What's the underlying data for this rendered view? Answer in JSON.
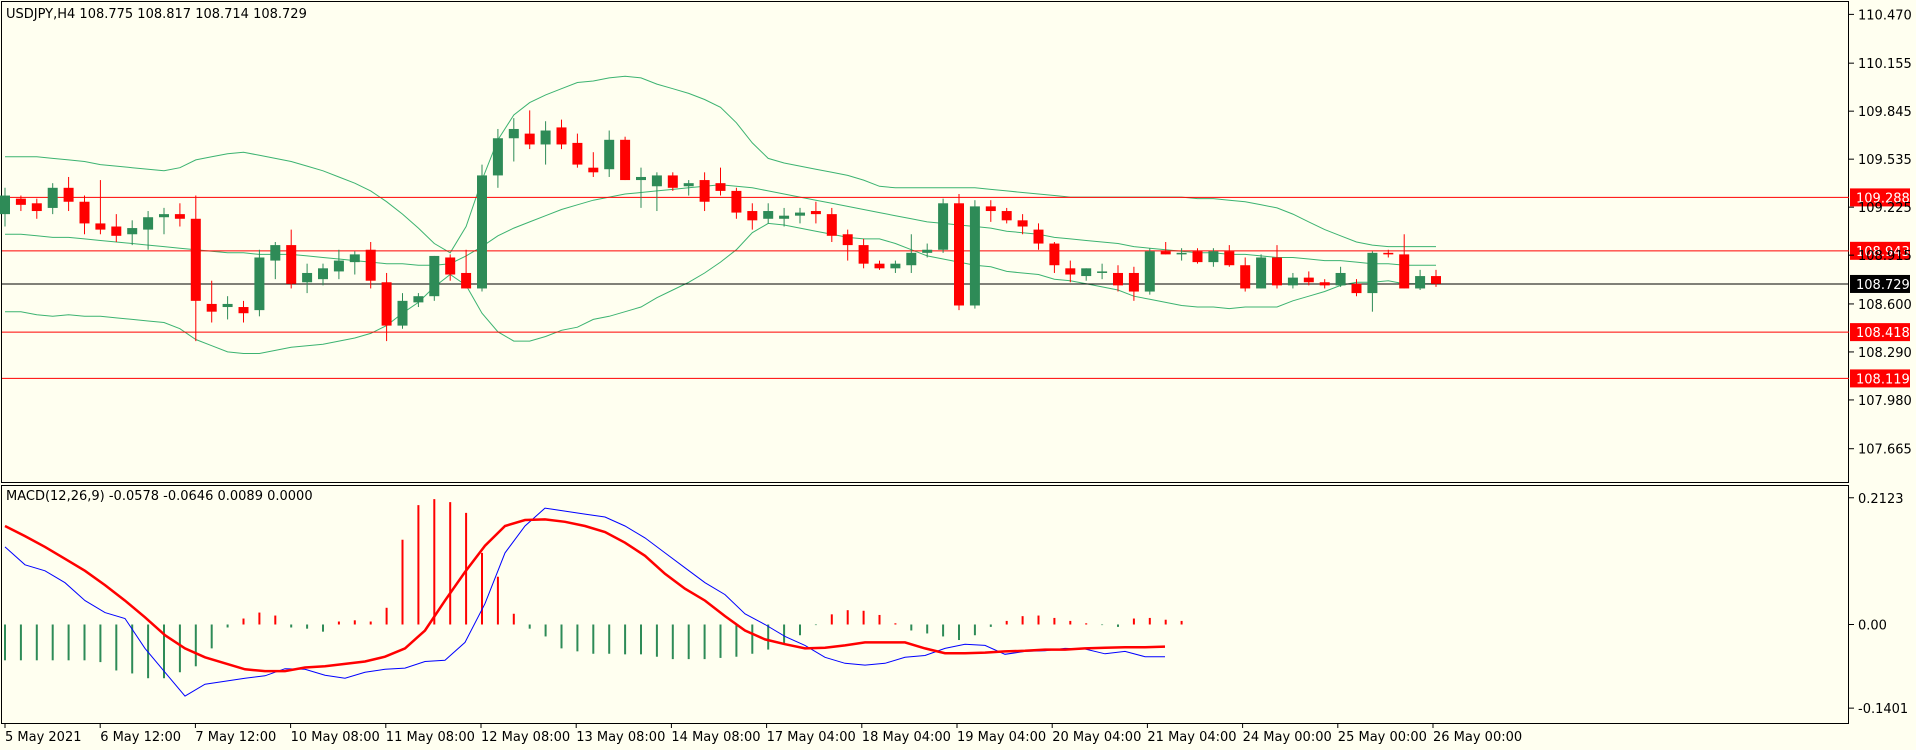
{
  "window": {
    "title": "USDJPY,H4  108.775 108.817 108.714 108.729"
  },
  "colors": {
    "background": "#fffff0",
    "bull": "#2e8b57",
    "bear": "#ff0000",
    "band": "#3cb371",
    "macd_main": "#0000ff",
    "macd_signal": "#ff0000",
    "level": "#ff0000",
    "current_price": "#000000"
  },
  "chart_data": [
    {
      "type": "candlestick",
      "title": "USDJPY,H4  108.775 108.817 108.714 108.729",
      "symbol": "USDJPY",
      "timeframe": "H4",
      "ohlc_last": {
        "open": 108.775,
        "high": 108.817,
        "low": 108.714,
        "close": 108.729
      },
      "ylim": [
        107.45,
        110.55
      ],
      "y_ticks": [
        "110.470",
        "110.155",
        "109.845",
        "109.535",
        "109.225",
        "108.915",
        "108.600",
        "108.290",
        "107.980",
        "107.665"
      ],
      "x_ticks": [
        "5 May 2021",
        "6 May 12:00",
        "7 May 12:00",
        "10 May 08:00",
        "11 May 08:00",
        "12 May 08:00",
        "13 May 08:00",
        "14 May 08:00",
        "17 May 04:00",
        "18 May 04:00",
        "19 May 04:00",
        "20 May 04:00",
        "21 May 04:00",
        "24 May 00:00",
        "25 May 00:00",
        "26 May 00:00"
      ],
      "current_price": "108.729",
      "levels": [
        "109.288",
        "108.943",
        "108.418",
        "108.119"
      ],
      "candles": [
        [
          109.18,
          109.35,
          109.1,
          109.3
        ],
        [
          109.28,
          109.3,
          109.2,
          109.24
        ],
        [
          109.25,
          109.28,
          109.15,
          109.2
        ],
        [
          109.22,
          109.38,
          109.18,
          109.35
        ],
        [
          109.35,
          109.42,
          109.2,
          109.26
        ],
        [
          109.26,
          109.3,
          109.05,
          109.12
        ],
        [
          109.12,
          109.4,
          109.05,
          109.08
        ],
        [
          109.1,
          109.18,
          109.0,
          109.04
        ],
        [
          109.05,
          109.14,
          108.98,
          109.09
        ],
        [
          109.08,
          109.2,
          108.95,
          109.16
        ],
        [
          109.16,
          109.22,
          109.05,
          109.18
        ],
        [
          109.18,
          109.25,
          109.1,
          109.15
        ],
        [
          109.15,
          109.3,
          108.36,
          108.62
        ],
        [
          108.6,
          108.75,
          108.48,
          108.55
        ],
        [
          108.58,
          108.65,
          108.5,
          108.6
        ],
        [
          108.58,
          108.62,
          108.48,
          108.54
        ],
        [
          108.56,
          108.95,
          108.52,
          108.9
        ],
        [
          108.88,
          109.0,
          108.76,
          108.98
        ],
        [
          108.98,
          109.08,
          108.7,
          108.73
        ],
        [
          108.74,
          108.86,
          108.67,
          108.8
        ],
        [
          108.76,
          108.86,
          108.72,
          108.83
        ],
        [
          108.81,
          108.95,
          108.76,
          108.88
        ],
        [
          108.87,
          108.94,
          108.79,
          108.92
        ],
        [
          108.95,
          109.0,
          108.7,
          108.75
        ],
        [
          108.74,
          108.8,
          108.36,
          108.46
        ],
        [
          108.46,
          108.67,
          108.44,
          108.62
        ],
        [
          108.61,
          108.67,
          108.58,
          108.65
        ],
        [
          108.65,
          108.91,
          108.62,
          108.91
        ],
        [
          108.9,
          108.92,
          108.75,
          108.79
        ],
        [
          108.8,
          108.95,
          108.7,
          108.7
        ],
        [
          108.7,
          109.5,
          108.68,
          109.43
        ],
        [
          109.43,
          109.73,
          109.35,
          109.67
        ],
        [
          109.67,
          109.8,
          109.52,
          109.73
        ],
        [
          109.7,
          109.85,
          109.6,
          109.63
        ],
        [
          109.63,
          109.78,
          109.5,
          109.72
        ],
        [
          109.74,
          109.79,
          109.6,
          109.63
        ],
        [
          109.64,
          109.7,
          109.48,
          109.5
        ],
        [
          109.48,
          109.58,
          109.42,
          109.45
        ],
        [
          109.47,
          109.72,
          109.42,
          109.66
        ],
        [
          109.66,
          109.68,
          109.4,
          109.4
        ],
        [
          109.4,
          109.48,
          109.22,
          109.42
        ],
        [
          109.36,
          109.45,
          109.2,
          109.43
        ],
        [
          109.43,
          109.45,
          109.33,
          109.35
        ],
        [
          109.36,
          109.4,
          109.3,
          109.38
        ],
        [
          109.4,
          109.45,
          109.2,
          109.26
        ],
        [
          109.38,
          109.48,
          109.3,
          109.33
        ],
        [
          109.33,
          109.35,
          109.15,
          109.19
        ],
        [
          109.2,
          109.25,
          109.08,
          109.14
        ],
        [
          109.15,
          109.25,
          109.12,
          109.2
        ],
        [
          109.15,
          109.22,
          109.1,
          109.17
        ],
        [
          109.17,
          109.22,
          109.12,
          109.19
        ],
        [
          109.2,
          109.26,
          109.12,
          109.18
        ],
        [
          109.18,
          109.22,
          109.0,
          109.04
        ],
        [
          109.05,
          109.08,
          108.88,
          108.98
        ],
        [
          108.98,
          109.02,
          108.83,
          108.86
        ],
        [
          108.86,
          108.88,
          108.82,
          108.83
        ],
        [
          108.83,
          108.88,
          108.8,
          108.86
        ],
        [
          108.85,
          109.05,
          108.8,
          108.93
        ],
        [
          108.93,
          108.99,
          108.9,
          108.95
        ],
        [
          108.95,
          109.28,
          108.93,
          109.25
        ],
        [
          109.25,
          109.31,
          108.56,
          108.59
        ],
        [
          108.59,
          109.27,
          108.57,
          109.23
        ],
        [
          109.23,
          109.27,
          109.13,
          109.2
        ],
        [
          109.2,
          109.22,
          109.12,
          109.14
        ],
        [
          109.14,
          109.18,
          109.05,
          109.1
        ],
        [
          109.08,
          109.12,
          108.95,
          108.99
        ],
        [
          108.99,
          109.0,
          108.8,
          108.85
        ],
        [
          108.83,
          108.88,
          108.74,
          108.79
        ],
        [
          108.78,
          108.83,
          108.75,
          108.83
        ],
        [
          108.8,
          108.86,
          108.76,
          108.81
        ],
        [
          108.8,
          108.85,
          108.68,
          108.72
        ],
        [
          108.8,
          108.84,
          108.62,
          108.68
        ],
        [
          108.68,
          108.96,
          108.66,
          108.94
        ],
        [
          108.94,
          109.0,
          108.92,
          108.92
        ],
        [
          108.92,
          108.96,
          108.88,
          108.93
        ],
        [
          108.94,
          108.96,
          108.86,
          108.87
        ],
        [
          108.87,
          108.96,
          108.84,
          108.94
        ],
        [
          108.94,
          108.98,
          108.84,
          108.85
        ],
        [
          108.85,
          108.9,
          108.68,
          108.7
        ],
        [
          108.7,
          108.92,
          108.7,
          108.9
        ],
        [
          108.9,
          108.98,
          108.7,
          108.72
        ],
        [
          108.72,
          108.8,
          108.7,
          108.77
        ],
        [
          108.77,
          108.81,
          108.72,
          108.74
        ],
        [
          108.74,
          108.76,
          108.7,
          108.72
        ],
        [
          108.72,
          108.84,
          108.71,
          108.8
        ],
        [
          108.73,
          108.76,
          108.65,
          108.67
        ],
        [
          108.67,
          108.94,
          108.55,
          108.93
        ],
        [
          108.93,
          108.95,
          108.9,
          108.92
        ],
        [
          108.92,
          109.05,
          108.7,
          108.7
        ],
        [
          108.7,
          108.82,
          108.69,
          108.78
        ],
        [
          108.78,
          108.82,
          108.71,
          108.73
        ]
      ],
      "bands": {
        "upper": [
          109.55,
          109.55,
          109.55,
          109.54,
          109.53,
          109.52,
          109.5,
          109.49,
          109.48,
          109.47,
          109.46,
          109.48,
          109.53,
          109.55,
          109.57,
          109.58,
          109.56,
          109.54,
          109.52,
          109.49,
          109.46,
          109.42,
          109.38,
          109.33,
          109.26,
          109.18,
          109.09,
          108.99,
          108.93,
          109.1,
          109.4,
          109.66,
          109.82,
          109.9,
          109.95,
          109.99,
          110.03,
          110.04,
          110.06,
          110.07,
          110.06,
          110.02,
          109.99,
          109.96,
          109.92,
          109.87,
          109.77,
          109.64,
          109.54,
          109.51,
          109.49,
          109.47,
          109.45,
          109.43,
          109.4,
          109.36,
          109.35,
          109.35,
          109.35,
          109.35,
          109.35,
          109.35,
          109.34,
          109.33,
          109.32,
          109.31,
          109.3,
          109.29,
          109.29,
          109.29,
          109.29,
          109.29,
          109.29,
          109.29,
          109.29,
          109.28,
          109.28,
          109.27,
          109.26,
          109.24,
          109.22,
          109.18,
          109.13,
          109.08,
          109.04,
          109.0,
          108.98,
          108.97,
          108.97,
          108.97,
          108.97
        ],
        "middle": [
          109.05,
          109.05,
          109.04,
          109.03,
          109.03,
          109.02,
          109.01,
          109.0,
          108.99,
          108.98,
          108.97,
          108.96,
          108.95,
          108.94,
          108.93,
          108.93,
          108.92,
          108.92,
          108.92,
          108.91,
          108.9,
          108.89,
          108.88,
          108.87,
          108.86,
          108.86,
          108.85,
          108.85,
          108.86,
          108.91,
          108.97,
          109.04,
          109.09,
          109.13,
          109.17,
          109.21,
          109.24,
          109.27,
          109.29,
          109.31,
          109.32,
          109.33,
          109.34,
          109.35,
          109.36,
          109.37,
          109.36,
          109.35,
          109.33,
          109.31,
          109.29,
          109.27,
          109.25,
          109.23,
          109.21,
          109.19,
          109.17,
          109.15,
          109.13,
          109.12,
          109.11,
          109.1,
          109.09,
          109.07,
          109.06,
          109.05,
          109.03,
          109.02,
          109.01,
          109.0,
          108.99,
          108.97,
          108.96,
          108.95,
          108.94,
          108.93,
          108.93,
          108.92,
          108.92,
          108.91,
          108.9,
          108.9,
          108.89,
          108.88,
          108.88,
          108.87,
          108.86,
          108.86,
          108.85,
          108.85,
          108.85
        ],
        "lower": [
          108.55,
          108.55,
          108.53,
          108.52,
          108.53,
          108.52,
          108.52,
          108.51,
          108.5,
          108.49,
          108.48,
          108.44,
          108.37,
          108.33,
          108.29,
          108.28,
          108.28,
          108.3,
          108.32,
          108.33,
          108.34,
          108.36,
          108.38,
          108.41,
          108.46,
          108.54,
          108.61,
          108.71,
          108.79,
          108.72,
          108.54,
          108.42,
          108.36,
          108.36,
          108.39,
          108.43,
          108.45,
          108.5,
          108.52,
          108.55,
          108.58,
          108.64,
          108.69,
          108.74,
          108.8,
          108.87,
          108.95,
          109.06,
          109.12,
          109.11,
          109.09,
          109.07,
          109.05,
          109.03,
          109.02,
          109.02,
          108.99,
          108.95,
          108.91,
          108.89,
          108.87,
          108.85,
          108.84,
          108.81,
          108.8,
          108.79,
          108.76,
          108.75,
          108.73,
          108.71,
          108.69,
          108.65,
          108.63,
          108.61,
          108.59,
          108.58,
          108.58,
          108.57,
          108.58,
          108.58,
          108.58,
          108.62,
          108.65,
          108.68,
          108.72,
          108.74,
          108.74,
          108.75,
          108.73,
          108.73,
          108.73
        ]
      }
    },
    {
      "type": "macd",
      "title": "MACD(12,26,9) -0.0578 -0.0646 0.0089 0.0000",
      "ylim": [
        -0.165,
        0.232
      ],
      "y_ticks": [
        "0.2123",
        "0.00",
        "-0.1401"
      ],
      "histogram": [
        -0.06,
        -0.06,
        -0.06,
        -0.06,
        -0.06,
        -0.06,
        -0.063,
        -0.077,
        -0.082,
        -0.09,
        -0.09,
        -0.08,
        -0.07,
        -0.04,
        -0.005,
        0.01,
        0.02,
        0.015,
        -0.005,
        -0.007,
        -0.012,
        0.005,
        0.007,
        0.005,
        0.028,
        0.142,
        0.2,
        0.21,
        0.205,
        0.187,
        0.12,
        0.08,
        0.018,
        -0.007,
        -0.02,
        -0.04,
        -0.045,
        -0.049,
        -0.049,
        -0.05,
        -0.05,
        -0.054,
        -0.058,
        -0.058,
        -0.058,
        -0.056,
        -0.054,
        -0.049,
        -0.042,
        -0.032,
        -0.018,
        -0.001,
        0.017,
        0.024,
        0.023,
        0.016,
        0.002,
        -0.01,
        -0.015,
        -0.02,
        -0.026,
        -0.018,
        -0.004,
        0.006,
        0.014,
        0.015,
        0.011,
        0.006,
        0.002,
        -0.001,
        -0.004,
        0.01,
        0.011,
        0.008,
        0.006
      ],
      "main": [
        0.13,
        0.1,
        0.09,
        0.07,
        0.04,
        0.02,
        0.01,
        -0.04,
        -0.08,
        -0.12,
        -0.1,
        -0.095,
        -0.09,
        -0.086,
        -0.074,
        -0.075,
        -0.085,
        -0.09,
        -0.08,
        -0.075,
        -0.073,
        -0.062,
        -0.06,
        -0.03,
        0.035,
        0.12,
        0.165,
        0.195,
        0.19,
        0.185,
        0.18,
        0.165,
        0.145,
        0.12,
        0.095,
        0.07,
        0.05,
        0.018,
        0.0,
        -0.02,
        -0.035,
        -0.055,
        -0.065,
        -0.068,
        -0.065,
        -0.055,
        -0.052,
        -0.04,
        -0.033,
        -0.035,
        -0.05,
        -0.045,
        -0.044,
        -0.04,
        -0.041,
        -0.049,
        -0.045,
        -0.054,
        -0.054
      ],
      "signal": [
        0.165,
        0.148,
        0.13,
        0.11,
        0.09,
        0.066,
        0.04,
        0.012,
        -0.018,
        -0.04,
        -0.055,
        -0.065,
        -0.075,
        -0.078,
        -0.078,
        -0.072,
        -0.07,
        -0.066,
        -0.062,
        -0.054,
        -0.04,
        -0.01,
        0.04,
        0.088,
        0.132,
        0.165,
        0.175,
        0.176,
        0.172,
        0.165,
        0.155,
        0.137,
        0.115,
        0.085,
        0.06,
        0.04,
        0.014,
        -0.01,
        -0.025,
        -0.033,
        -0.04,
        -0.039,
        -0.035,
        -0.03,
        -0.03,
        -0.03,
        -0.04,
        -0.048,
        -0.048,
        -0.047,
        -0.045,
        -0.044,
        -0.042,
        -0.042,
        -0.04,
        -0.039,
        -0.038,
        -0.038,
        -0.037
      ]
    }
  ]
}
